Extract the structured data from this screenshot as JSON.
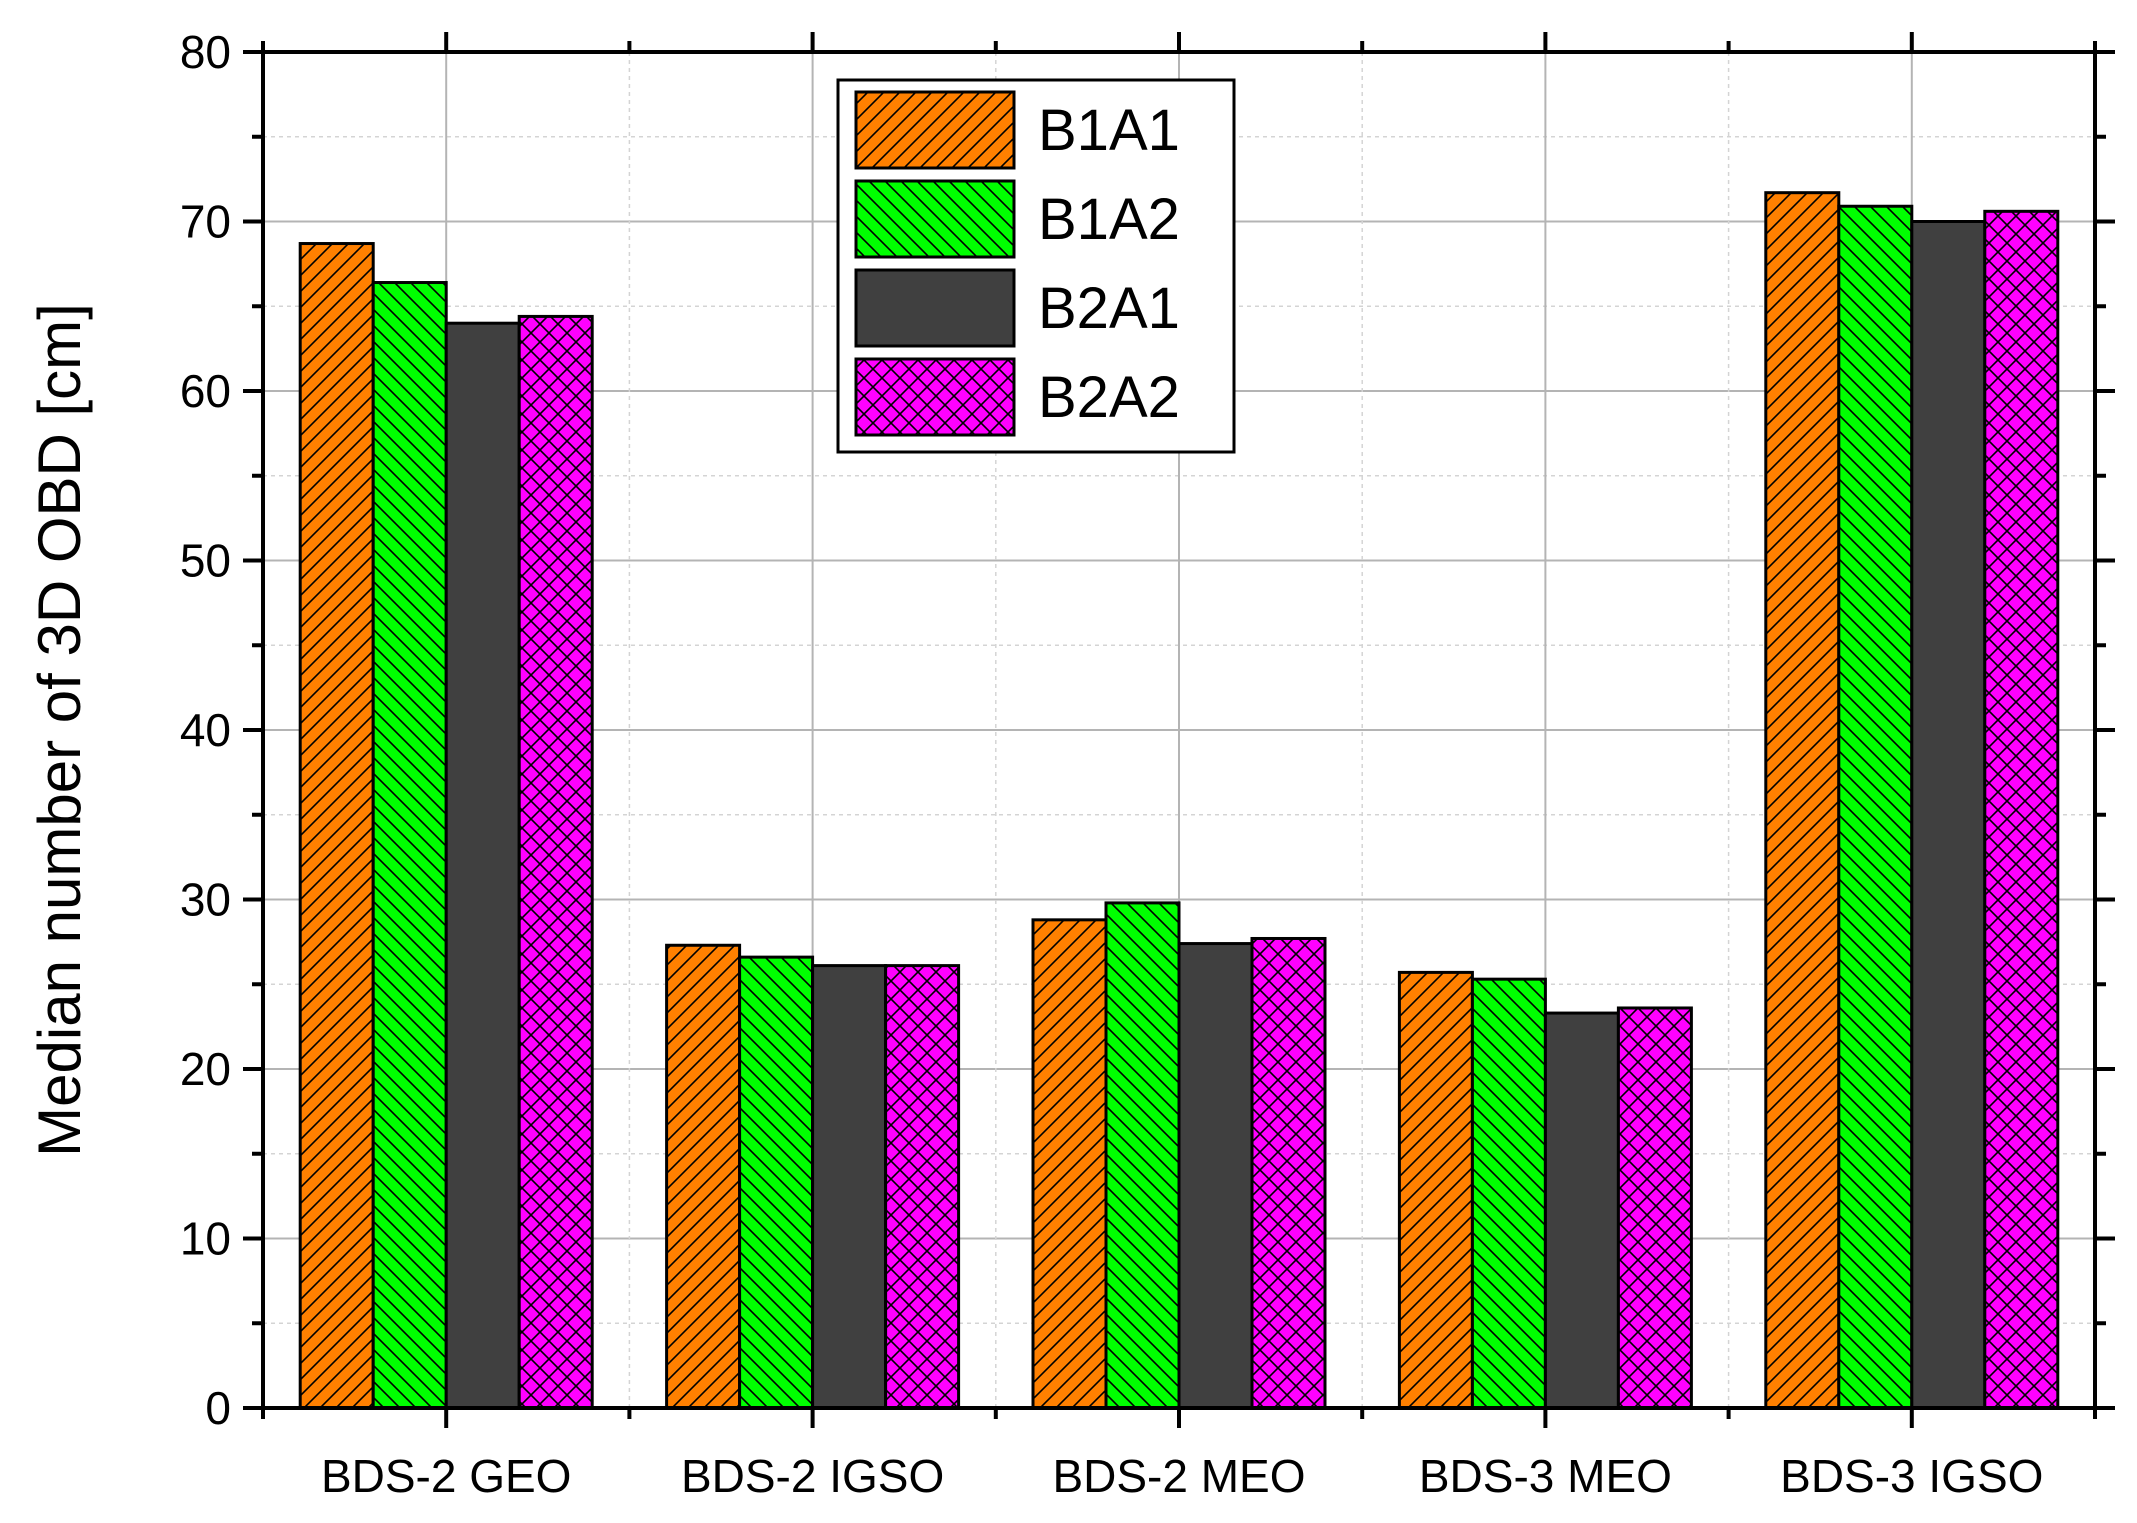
{
  "chart_data": {
    "type": "bar",
    "xlabel": "",
    "ylabel": "Median number of 3D OBD [cm]",
    "ylim": [
      0,
      80
    ],
    "yticks": [
      0,
      10,
      20,
      30,
      40,
      50,
      60,
      70,
      80
    ],
    "grid": true,
    "legend_position": "top-center",
    "categories": [
      "BDS-2 GEO",
      "BDS-2 IGSO",
      "BDS-2 MEO",
      "BDS-3 MEO",
      "BDS-3 IGSO"
    ],
    "series": [
      {
        "name": "B1A1",
        "values": [
          68.7,
          27.3,
          28.8,
          25.7,
          71.7
        ],
        "color": "#ff8000",
        "pattern": "diagonal-up"
      },
      {
        "name": "B1A2",
        "values": [
          66.4,
          26.6,
          29.8,
          25.3,
          70.9
        ],
        "color": "#00ff00",
        "pattern": "diagonal-down"
      },
      {
        "name": "B2A1",
        "values": [
          64.0,
          26.1,
          27.4,
          23.3,
          70.0
        ],
        "color": "#404040",
        "pattern": "none"
      },
      {
        "name": "B2A2",
        "values": [
          64.4,
          26.1,
          27.7,
          23.6,
          70.6
        ],
        "color": "#ff00ff",
        "pattern": "crosshatch"
      }
    ]
  }
}
